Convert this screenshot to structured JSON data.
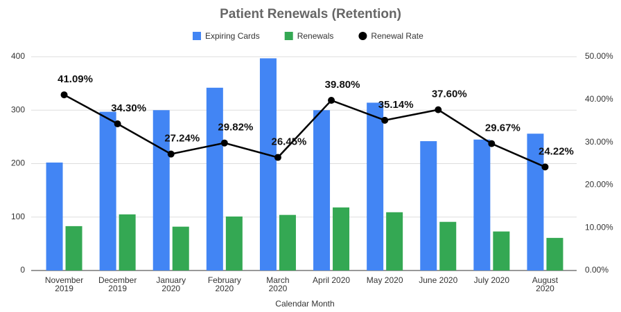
{
  "chart_data": {
    "type": "bar",
    "title": "Patient Renewals (Retention)",
    "x_label": "Calendar Month",
    "categories": [
      "November\n2019",
      "December\n2019",
      "January\n2020",
      "February\n2020",
      "March\n2020",
      "April 2020",
      "May 2020",
      "June 2020",
      "July 2020",
      "August\n2020"
    ],
    "series": [
      {
        "name": "Expiring Cards",
        "color": "#4285f4",
        "values": [
          202,
          297,
          300,
          342,
          397,
          300,
          314,
          242,
          245,
          256
        ]
      },
      {
        "name": "Renewals",
        "color": "#34a853",
        "values": [
          83,
          105,
          82,
          101,
          104,
          118,
          109,
          91,
          73,
          61
        ]
      },
      {
        "name": "Renewal Rate",
        "color": "#000000",
        "axis": "y2",
        "type": "line",
        "values": [
          41.09,
          34.3,
          27.24,
          29.82,
          26.45,
          39.8,
          35.14,
          37.6,
          29.67,
          24.22
        ],
        "value_labels": [
          "41.09%",
          "34.30%",
          "27.24%",
          "29.82%",
          "26.45%",
          "39.80%",
          "35.14%",
          "37.60%",
          "29.67%",
          "24.22%"
        ]
      }
    ],
    "ylim": [
      0,
      400
    ],
    "yticks": [
      0,
      100,
      200,
      300,
      400
    ],
    "y2lim": [
      0,
      50
    ],
    "y2ticks": [
      {
        "value": 0,
        "label": "0.00%"
      },
      {
        "value": 10,
        "label": "10.00%"
      },
      {
        "value": 20,
        "label": "20.00%"
      },
      {
        "value": 30,
        "label": "30.00%"
      },
      {
        "value": 40,
        "label": "40.00%"
      },
      {
        "value": 50,
        "label": "50.00%"
      }
    ],
    "grid": true,
    "legend": "top"
  }
}
